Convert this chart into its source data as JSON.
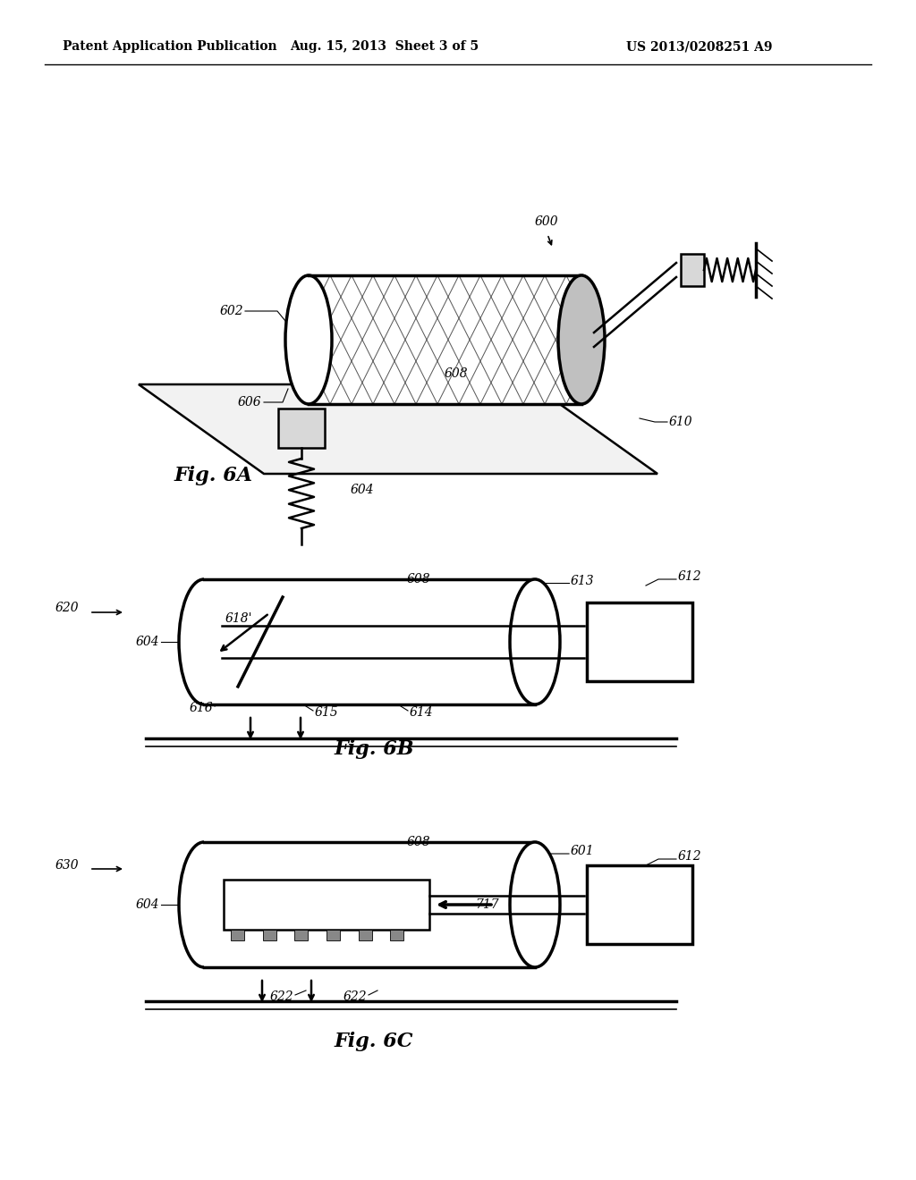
{
  "bg_color": "#ffffff",
  "line_color": "#000000",
  "header_left": "Patent Application Publication",
  "header_center": "Aug. 15, 2013  Sheet 3 of 5",
  "header_right": "US 2013/0208251 A9"
}
